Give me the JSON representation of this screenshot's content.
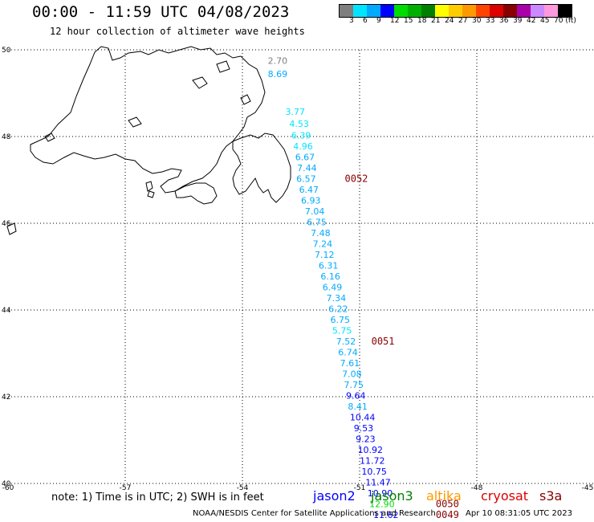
{
  "title": "00:00 - 11:59 UTC 04/08/2023",
  "subtitle": "12 hour collection of altimeter wave heights",
  "color_scale": {
    "unit_label": "70 (ft)",
    "labels": [
      "3",
      "6",
      "9",
      "12",
      "15",
      "18",
      "21",
      "24",
      "27",
      "30",
      "33",
      "36",
      "39",
      "42",
      "45",
      "70 (ft)"
    ],
    "colors": [
      "#7f7f7f",
      "#00e5ff",
      "#00aaff",
      "#0000ff",
      "#00dd00",
      "#00b000",
      "#008000",
      "#ffff00",
      "#ffcc00",
      "#ff9900",
      "#ff4400",
      "#dd0000",
      "#880000",
      "#aa00aa",
      "#cc88ff",
      "#ff99dd",
      "#000000"
    ]
  },
  "chart_data": {
    "type": "map",
    "x_range": [
      -60,
      -45
    ],
    "y_range": [
      40,
      50
    ],
    "x_ticks": [
      "-60",
      "-57",
      "-54",
      "-51",
      "-48",
      "-45"
    ],
    "y_ticks": [
      "50",
      "48",
      "46",
      "44",
      "42",
      "40"
    ],
    "grid": true,
    "observations": [
      {
        "lon": -53.35,
        "lat": 49.68,
        "value": "2.70",
        "color": "#7f7f7f"
      },
      {
        "lon": -53.35,
        "lat": 49.37,
        "value": "8.69",
        "color": "#00aaff"
      },
      {
        "lon": -52.9,
        "lat": 48.5,
        "value": "3.77",
        "color": "#00e5ff"
      },
      {
        "lon": -52.8,
        "lat": 48.22,
        "value": "4.53",
        "color": "#00e5ff"
      },
      {
        "lon": -52.75,
        "lat": 47.95,
        "value": "6.39",
        "color": "#00e5ff"
      },
      {
        "lon": -52.7,
        "lat": 47.7,
        "value": "4.96",
        "color": "#00e5ff"
      },
      {
        "lon": -52.65,
        "lat": 47.45,
        "value": "6.67",
        "color": "#00aaff"
      },
      {
        "lon": -52.6,
        "lat": 47.2,
        "value": "7.44",
        "color": "#00aaff"
      },
      {
        "lon": -52.62,
        "lat": 46.95,
        "value": "6.57",
        "color": "#00aaff"
      },
      {
        "lon": -52.55,
        "lat": 46.7,
        "value": "6.47",
        "color": "#00aaff"
      },
      {
        "lon": -52.5,
        "lat": 46.45,
        "value": "6.93",
        "color": "#00aaff"
      },
      {
        "lon": -52.4,
        "lat": 46.2,
        "value": "7.04",
        "color": "#00aaff"
      },
      {
        "lon": -52.35,
        "lat": 45.95,
        "value": "6.75",
        "color": "#00aaff"
      },
      {
        "lon": -52.25,
        "lat": 45.7,
        "value": "7.48",
        "color": "#00aaff"
      },
      {
        "lon": -52.2,
        "lat": 45.45,
        "value": "7.24",
        "color": "#00aaff"
      },
      {
        "lon": -52.15,
        "lat": 45.2,
        "value": "7.12",
        "color": "#00aaff"
      },
      {
        "lon": -52.05,
        "lat": 44.95,
        "value": "6.31",
        "color": "#00aaff"
      },
      {
        "lon": -52.0,
        "lat": 44.7,
        "value": "6.16",
        "color": "#00aaff"
      },
      {
        "lon": -51.95,
        "lat": 44.45,
        "value": "6.49",
        "color": "#00aaff"
      },
      {
        "lon": -51.85,
        "lat": 44.2,
        "value": "7.34",
        "color": "#00aaff"
      },
      {
        "lon": -51.8,
        "lat": 43.95,
        "value": "6.22",
        "color": "#00aaff"
      },
      {
        "lon": -51.75,
        "lat": 43.7,
        "value": "6.75",
        "color": "#00aaff"
      },
      {
        "lon": -51.7,
        "lat": 43.45,
        "value": "5.75",
        "color": "#00e5ff"
      },
      {
        "lon": -51.6,
        "lat": 43.2,
        "value": "7.52",
        "color": "#00aaff"
      },
      {
        "lon": -51.55,
        "lat": 42.95,
        "value": "6.74",
        "color": "#00aaff"
      },
      {
        "lon": -51.5,
        "lat": 42.7,
        "value": "7.61",
        "color": "#00aaff"
      },
      {
        "lon": -51.45,
        "lat": 42.45,
        "value": "7.08",
        "color": "#00aaff"
      },
      {
        "lon": -51.4,
        "lat": 42.2,
        "value": "7.75",
        "color": "#00aaff"
      },
      {
        "lon": -51.35,
        "lat": 41.95,
        "value": "9.64",
        "color": "#0000ff"
      },
      {
        "lon": -51.3,
        "lat": 41.7,
        "value": "8.41",
        "color": "#00aaff"
      },
      {
        "lon": -51.25,
        "lat": 41.45,
        "value": "10.44",
        "color": "#0000ff"
      },
      {
        "lon": -51.15,
        "lat": 41.2,
        "value": "9.53",
        "color": "#0000ff"
      },
      {
        "lon": -51.1,
        "lat": 40.95,
        "value": "9.23",
        "color": "#0000ff"
      },
      {
        "lon": -51.05,
        "lat": 40.7,
        "value": "10.92",
        "color": "#0000ff"
      },
      {
        "lon": -51.0,
        "lat": 40.45,
        "value": "11.72",
        "color": "#0000ff"
      },
      {
        "lon": -50.95,
        "lat": 40.2,
        "value": "10.75",
        "color": "#0000ff"
      },
      {
        "lon": -50.85,
        "lat": 39.95,
        "value": "11.47",
        "color": "#0000ff"
      },
      {
        "lon": -50.8,
        "lat": 39.7,
        "value": "10.90",
        "color": "#0000ff"
      },
      {
        "lon": -50.75,
        "lat": 39.45,
        "value": "12.90",
        "color": "#00dd00"
      },
      {
        "lon": -50.65,
        "lat": 39.2,
        "value": "11.62",
        "color": "#0000ff"
      }
    ],
    "time_tags": [
      {
        "lon": -51.38,
        "lat": 46.95,
        "value": "0052",
        "color": "#880000"
      },
      {
        "lon": -50.7,
        "lat": 43.2,
        "value": "0051",
        "color": "#880000"
      },
      {
        "lon": -49.05,
        "lat": 39.45,
        "value": "0050",
        "color": "#880000"
      },
      {
        "lon": -49.05,
        "lat": 39.2,
        "value": "0049",
        "color": "#880000"
      }
    ]
  },
  "note": "note: 1) Time is in UTC; 2) SWH is in feet",
  "satellites": [
    {
      "name": "jason2",
      "color": "#0000ff"
    },
    {
      "name": "jason3",
      "color": "#008000"
    },
    {
      "name": "altika",
      "color": "#ff9900"
    },
    {
      "name": "cryosat",
      "color": "#dd0000"
    },
    {
      "name": "s3a",
      "color": "#880000"
    }
  ],
  "credit": "NOAA/NESDIS Center for Satellite Applications and Research",
  "timestamp": "Apr 10 08:31:05 UTC 2023"
}
